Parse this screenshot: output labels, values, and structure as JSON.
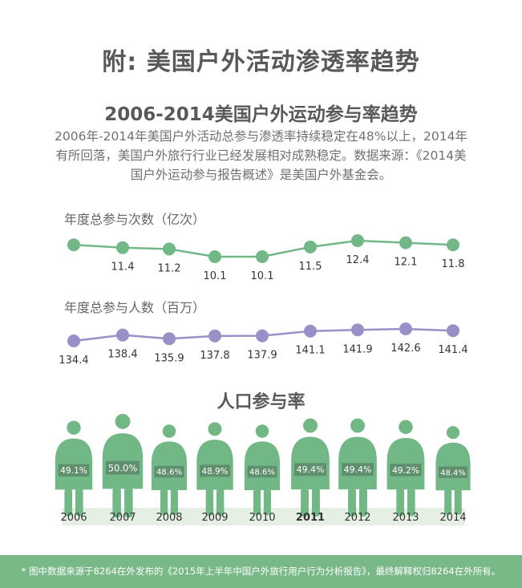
{
  "main_title": "附: 美国户外活动渗透率趋势",
  "subtitle": "2006-2014美国户外运动参与率趋势",
  "description": [
    "2006年-2014年美国户外活动总参与渗透率持续稳定在48%以上，2014年",
    "有所回落，美国户外旅行行业已经发展相对成熟稳定。数据来源：《2014美",
    "国户外运动参与报告概述》是美国户外基金会。"
  ],
  "colors": {
    "green": "#72b887",
    "purple": "#9a90c8",
    "label_bg": "#5f8f6d",
    "footer_bg": "#79b887"
  },
  "chart_data": [
    {
      "type": "line",
      "title": "年度总参与次数（亿次）",
      "x": [
        "2006",
        "2007",
        "2008",
        "2009",
        "2010",
        "2011",
        "2012",
        "2013",
        "2014"
      ],
      "values": [
        null,
        11.4,
        11.2,
        10.1,
        10.1,
        11.5,
        12.4,
        12.1,
        11.8
      ],
      "labels": [
        "",
        "11.4",
        "11.2",
        "10.1",
        "10.1",
        "11.5",
        "12.4",
        "12.1",
        "11.8"
      ]
    },
    {
      "type": "line",
      "title": "年度总参与人数（百万）",
      "x": [
        "2006",
        "2007",
        "2008",
        "2009",
        "2010",
        "2011",
        "2012",
        "2013",
        "2014"
      ],
      "values": [
        134.4,
        138.4,
        135.9,
        137.8,
        137.9,
        141.1,
        141.9,
        142.6,
        141.4
      ],
      "labels": [
        "134.4",
        "138.4",
        "135.9",
        "137.8",
        "137.9",
        "141.1",
        "141.9",
        "142.6",
        "141.4"
      ]
    },
    {
      "type": "bar",
      "title": "人口参与率",
      "categories": [
        "2006",
        "2007",
        "2008",
        "2009",
        "2010",
        "2011",
        "2012",
        "2013",
        "2014"
      ],
      "values": [
        49.1,
        50.0,
        48.6,
        48.9,
        48.6,
        49.4,
        49.4,
        49.2,
        48.4
      ],
      "labels": [
        "49.1%",
        "50.0%",
        "48.6%",
        "48.9%",
        "48.6%",
        "49.4%",
        "49.4%",
        "49.2%",
        "48.4%"
      ],
      "bold_year": "2011"
    }
  ],
  "footer": "* 图中数据来源于8264在外发布的《2015年上半年中国户外旅行用户行为分析报告》，最终解释权归8264在外所有。"
}
